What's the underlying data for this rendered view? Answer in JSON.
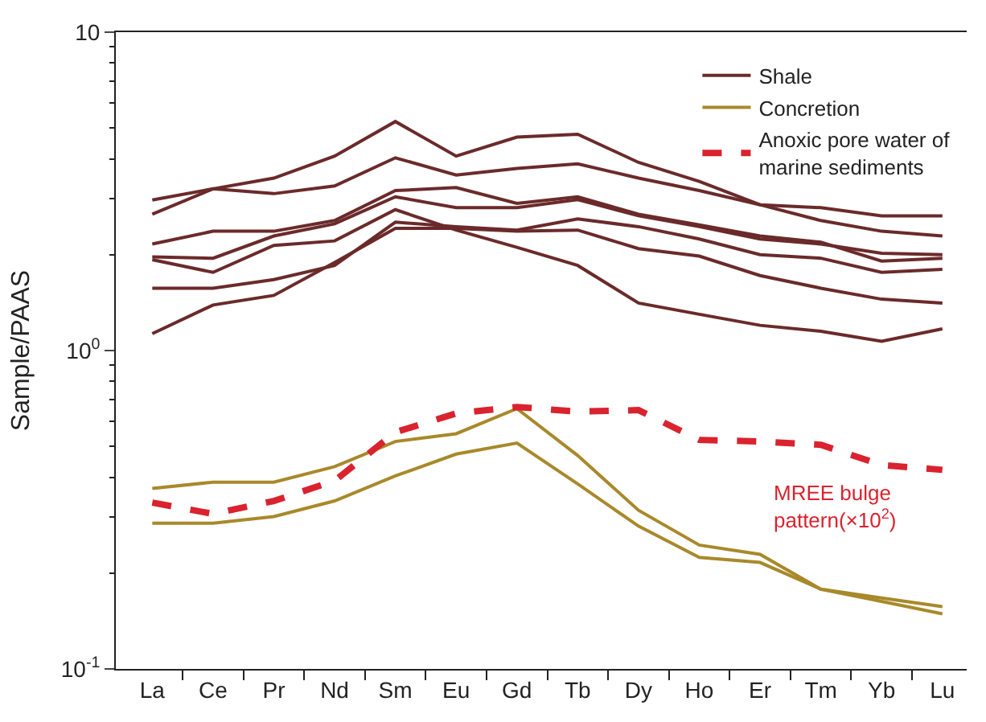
{
  "chart_data": {
    "type": "line",
    "ylabel": "Sample/PAAS",
    "log": true,
    "ylim": [
      0.1,
      10
    ],
    "yticks": [
      {
        "value": 0.1,
        "label": "10$^{-1}$"
      },
      {
        "value": 1,
        "label": "10$^{0}$"
      },
      10
    ],
    "legend": "top right",
    "marker": "none",
    "categories": [
      "La",
      "Ce",
      "Pr",
      "Nd",
      "Sm",
      "Eu",
      "Gd",
      "Tb",
      "Dy",
      "Ho",
      "Er",
      "Tm",
      "Yb",
      "Lu"
    ],
    "series": [
      {
        "name": "Shale",
        "color": "#6b2a2a",
        "line_style": "solid",
        "values": [
          2.68,
          3.22,
          3.48,
          4.08,
          5.24,
          4.08,
          4.68,
          4.78,
          3.9,
          3.4,
          2.87,
          2.56,
          2.37,
          2.29
        ]
      },
      {
        "color": "#6b2a2a",
        "line_style": "solid",
        "values": [
          2.97,
          3.22,
          3.11,
          3.29,
          4.03,
          3.56,
          3.73,
          3.86,
          3.48,
          3.18,
          2.87,
          2.81,
          2.65,
          2.65
        ]
      },
      {
        "color": "#6b2a2a",
        "line_style": "solid",
        "values": [
          2.16,
          2.37,
          2.37,
          2.56,
          3.18,
          3.25,
          2.9,
          3.04,
          2.68,
          2.48,
          2.29,
          2.19,
          1.91,
          1.95
        ]
      },
      {
        "color": "#6b2a2a",
        "line_style": "solid",
        "values": [
          1.97,
          1.95,
          2.29,
          2.5,
          3.04,
          2.81,
          2.81,
          2.98,
          2.65,
          2.45,
          2.24,
          2.16,
          2.02,
          2.0
        ]
      },
      {
        "color": "#6b2a2a",
        "line_style": "solid",
        "values": [
          1.93,
          1.76,
          2.14,
          2.21,
          2.77,
          2.39,
          2.11,
          1.85,
          1.41,
          1.3,
          1.2,
          1.15,
          1.07,
          1.17
        ]
      },
      {
        "color": "#6b2a2a",
        "line_style": "solid",
        "values": [
          1.57,
          1.57,
          1.67,
          1.85,
          2.53,
          2.45,
          2.39,
          2.59,
          2.45,
          2.24,
          2.0,
          1.95,
          1.76,
          1.8
        ]
      },
      {
        "color": "#6b2a2a",
        "line_style": "solid",
        "values": [
          1.13,
          1.39,
          1.49,
          1.89,
          2.42,
          2.42,
          2.37,
          2.39,
          2.09,
          1.98,
          1.72,
          1.57,
          1.45,
          1.41
        ]
      },
      {
        "name": "Concretion",
        "color": "#a8892a",
        "line_style": "solid",
        "values": [
          0.369,
          0.386,
          0.386,
          0.432,
          0.518,
          0.548,
          0.657,
          0.468,
          0.315,
          0.245,
          0.229,
          0.178,
          0.167,
          0.157
        ]
      },
      {
        "color": "#a8892a",
        "line_style": "solid",
        "values": [
          0.287,
          0.287,
          0.301,
          0.337,
          0.404,
          0.473,
          0.512,
          0.381,
          0.281,
          0.224,
          0.216,
          0.178,
          0.163,
          0.149
        ]
      },
      {
        "name": "Anoxic pore water of\nmarine sediments",
        "color": "#d9232e",
        "line_style": "dashed",
        "values": [
          0.333,
          0.307,
          0.337,
          0.39,
          0.554,
          0.635,
          0.665,
          0.643,
          0.65,
          0.524,
          0.518,
          0.506,
          0.437,
          0.422
        ]
      }
    ],
    "annotations": [
      "MREE bulge\npattern(×10$^{2}$)"
    ]
  }
}
